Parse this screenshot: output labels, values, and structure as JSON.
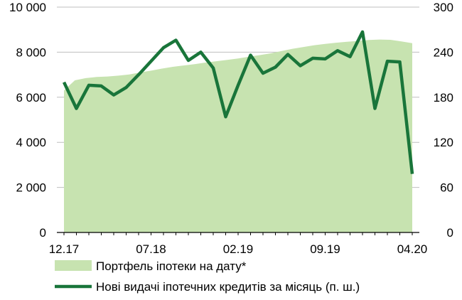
{
  "chart_data": {
    "type": "line",
    "x_tick_labels": [
      "12.17",
      "07.18",
      "02.19",
      "09.19",
      "04.20"
    ],
    "y_left": {
      "ticks": [
        0,
        2000,
        4000,
        6000,
        8000,
        10000
      ],
      "tick_labels": [
        "0",
        "2 000",
        "4 000",
        "6 000",
        "8 000",
        "10 000"
      ],
      "ylim": [
        0,
        10000
      ]
    },
    "y_right": {
      "ticks": [
        0,
        60,
        120,
        180,
        240,
        300
      ],
      "tick_labels": [
        "0",
        "60",
        "120",
        "180",
        "240",
        "300"
      ],
      "ylim": [
        0,
        300
      ]
    },
    "grid": "horizontal",
    "legend_position": "bottom",
    "series": [
      {
        "name": "Портфель іпотеки на дату*",
        "type": "area",
        "axis": "left",
        "color": "#c7e3b0",
        "values": [
          6300,
          6750,
          6850,
          6900,
          6920,
          6960,
          7010,
          7100,
          7180,
          7270,
          7350,
          7410,
          7470,
          7540,
          7600,
          7660,
          7720,
          7800,
          7870,
          7950,
          8050,
          8150,
          8230,
          8310,
          8370,
          8420,
          8460,
          8500,
          8540,
          8560,
          8550,
          8480,
          8400
        ]
      },
      {
        "name": "Нові видачі іпотечних кредитів за місяць (п. ш.)",
        "type": "line",
        "axis": "right",
        "color": "#19753a",
        "values": [
          200,
          165,
          196,
          195,
          183,
          193,
          210,
          228,
          246,
          256,
          229,
          240,
          219,
          154,
          196,
          236,
          212,
          220,
          237,
          222,
          232,
          231,
          242,
          234,
          267,
          165,
          228,
          227,
          78
        ]
      }
    ]
  }
}
